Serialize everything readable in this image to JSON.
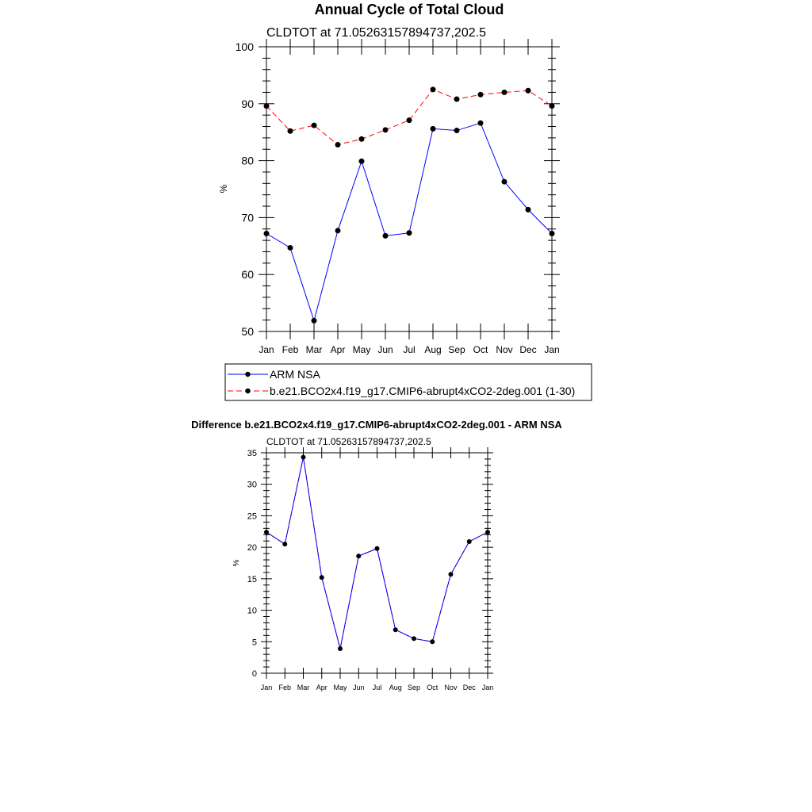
{
  "chart_data": [
    {
      "type": "line",
      "title": "Annual Cycle of Total Cloud",
      "subtitle": "CLDTOT at 71.05263157894737,202.5",
      "xlabel": "",
      "ylabel": "%",
      "categories": [
        "Jan",
        "Feb",
        "Mar",
        "Apr",
        "May",
        "Jun",
        "Jul",
        "Aug",
        "Sep",
        "Oct",
        "Nov",
        "Dec",
        "Jan"
      ],
      "ylim": [
        50,
        100
      ],
      "yticks": [
        50,
        60,
        70,
        80,
        90,
        100
      ],
      "grid": false,
      "legend": "bottom",
      "series": [
        {
          "name": "ARM NSA",
          "color": "#0000ff",
          "dash": "solid",
          "values": [
            67.2,
            64.7,
            51.9,
            67.7,
            79.9,
            66.8,
            67.3,
            85.6,
            85.3,
            86.6,
            76.3,
            71.4,
            67.2
          ]
        },
        {
          "name": "b.e21.BCO2x4.f19_g17.CMIP6-abrupt4xCO2-2deg.001 (1-30)",
          "color": "#ff0000",
          "dash": "dashed",
          "values": [
            89.6,
            85.2,
            86.2,
            82.8,
            83.8,
            85.4,
            87.1,
            92.5,
            90.8,
            91.6,
            92.0,
            92.3,
            89.6
          ]
        }
      ]
    },
    {
      "type": "line",
      "title": "Difference b.e21.BCO2x4.f19_g17.CMIP6-abrupt4xCO2-2deg.001 - ARM NSA",
      "subtitle": "CLDTOT at 71.05263157894737,202.5",
      "xlabel": "",
      "ylabel": "%",
      "categories": [
        "Jan",
        "Feb",
        "Mar",
        "Apr",
        "May",
        "Jun",
        "Jul",
        "Aug",
        "Sep",
        "Oct",
        "Nov",
        "Dec",
        "Jan"
      ],
      "ylim": [
        0,
        35
      ],
      "yticks": [
        0,
        5,
        10,
        15,
        20,
        25,
        30,
        35
      ],
      "grid": false,
      "series": [
        {
          "color": "#0000ff",
          "values": [
            22.4,
            20.5,
            34.3,
            15.2,
            3.9,
            18.6,
            19.8,
            6.9,
            5.5,
            5.0,
            15.7,
            20.9,
            22.4
          ]
        }
      ]
    }
  ]
}
